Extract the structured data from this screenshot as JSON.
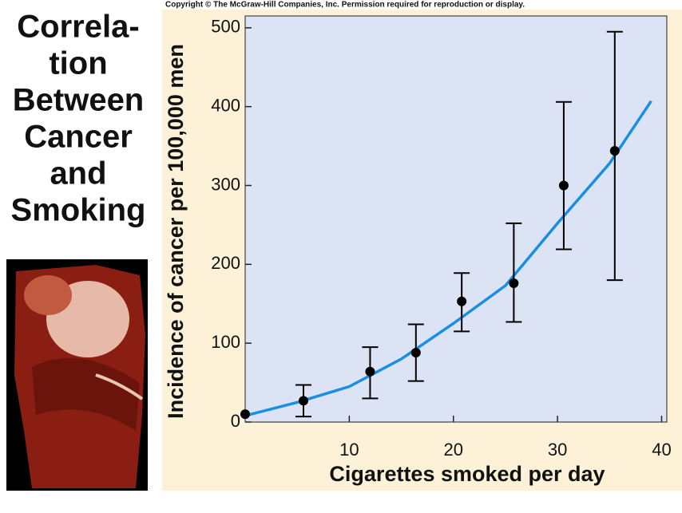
{
  "chart_data": {
    "type": "scatter",
    "copyright": "Copyright © The McGraw-Hill Companies, Inc. Permission required for reproduction or display.",
    "title_lines": [
      "Correla-",
      "tion",
      "Between",
      "Cancer",
      "and",
      "Smoking"
    ],
    "xlabel": "Cigarettes smoked per day",
    "ylabel": "Incidence of cancer per 100,000 men",
    "xlim": [
      0,
      40.5
    ],
    "ylim": [
      0,
      515
    ],
    "xticks": [
      10,
      20,
      30,
      40
    ],
    "yticks": [
      0,
      100,
      200,
      300,
      400,
      500
    ],
    "series": [
      {
        "color": "#000000",
        "x": [
          0,
          5.6,
          12,
          16.4,
          20.8,
          25.8,
          30.6,
          35.5
        ],
        "values": [
          10,
          27,
          64,
          88,
          153,
          176,
          300,
          344
        ],
        "yerr_minus": [
          null,
          20,
          34,
          36,
          38,
          49,
          81,
          164
        ],
        "yerr_plus": [
          null,
          20,
          31,
          36,
          36,
          76,
          106,
          151
        ]
      }
    ],
    "fit": {
      "color": "#1a8fe0",
      "x": [
        0,
        5,
        10,
        15,
        20,
        25,
        30,
        35,
        39
      ],
      "values": [
        8,
        25,
        45,
        80,
        125,
        173,
        252,
        328,
        407
      ]
    }
  }
}
